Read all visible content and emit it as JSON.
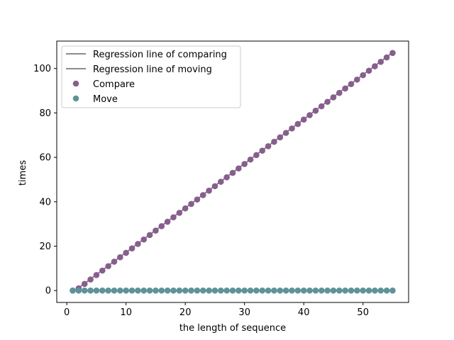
{
  "chart_data": {
    "type": "scatter",
    "xlabel": "the length of sequence",
    "ylabel": "times",
    "xlim": [
      -1.7,
      57.7
    ],
    "ylim": [
      -5.35,
      112.35
    ],
    "xticks": [
      0,
      10,
      20,
      30,
      40,
      50
    ],
    "yticks": [
      0,
      20,
      40,
      60,
      80,
      100
    ],
    "grid": false,
    "legend_position": "top-left",
    "series": [
      {
        "name": "Compare",
        "kind": "scatter",
        "color": "#875f8d",
        "x_start": 1,
        "x_end": 55,
        "y": [
          0,
          1,
          3,
          5,
          7,
          9,
          11,
          13,
          15,
          17,
          19,
          21,
          23,
          25,
          27,
          29,
          31,
          33,
          35,
          37,
          39,
          41,
          43,
          45,
          47,
          49,
          51,
          53,
          55,
          57,
          59,
          61,
          63,
          65,
          67,
          69,
          71,
          73,
          75,
          77,
          79,
          81,
          83,
          85,
          87,
          89,
          91,
          93,
          95,
          97,
          99,
          101,
          103,
          105,
          107
        ]
      },
      {
        "name": "Move",
        "kind": "scatter",
        "color": "#5f9397",
        "x_start": 1,
        "x_end": 55,
        "y": [
          0,
          0,
          0,
          0,
          0,
          0,
          0,
          0,
          0,
          0,
          0,
          0,
          0,
          0,
          0,
          0,
          0,
          0,
          0,
          0,
          0,
          0,
          0,
          0,
          0,
          0,
          0,
          0,
          0,
          0,
          0,
          0,
          0,
          0,
          0,
          0,
          0,
          0,
          0,
          0,
          0,
          0,
          0,
          0,
          0,
          0,
          0,
          0,
          0,
          0,
          0,
          0,
          0,
          0,
          0
        ]
      },
      {
        "name": "Regression line of comparing",
        "kind": "line",
        "color": "#666666",
        "x": [
          1,
          55
        ],
        "y": [
          -0.8,
          107.2
        ]
      },
      {
        "name": "Regression line of moving",
        "kind": "line",
        "color": "#666666",
        "x": [
          1,
          55
        ],
        "y": [
          0,
          0
        ]
      }
    ],
    "legend": [
      {
        "label": "Regression line of comparing",
        "marker": "line",
        "color": "#666666"
      },
      {
        "label": "Regression line of moving",
        "marker": "line",
        "color": "#666666"
      },
      {
        "label": "Compare",
        "marker": "dot",
        "color": "#875f8d"
      },
      {
        "label": "Move",
        "marker": "dot",
        "color": "#5f9397"
      }
    ]
  }
}
